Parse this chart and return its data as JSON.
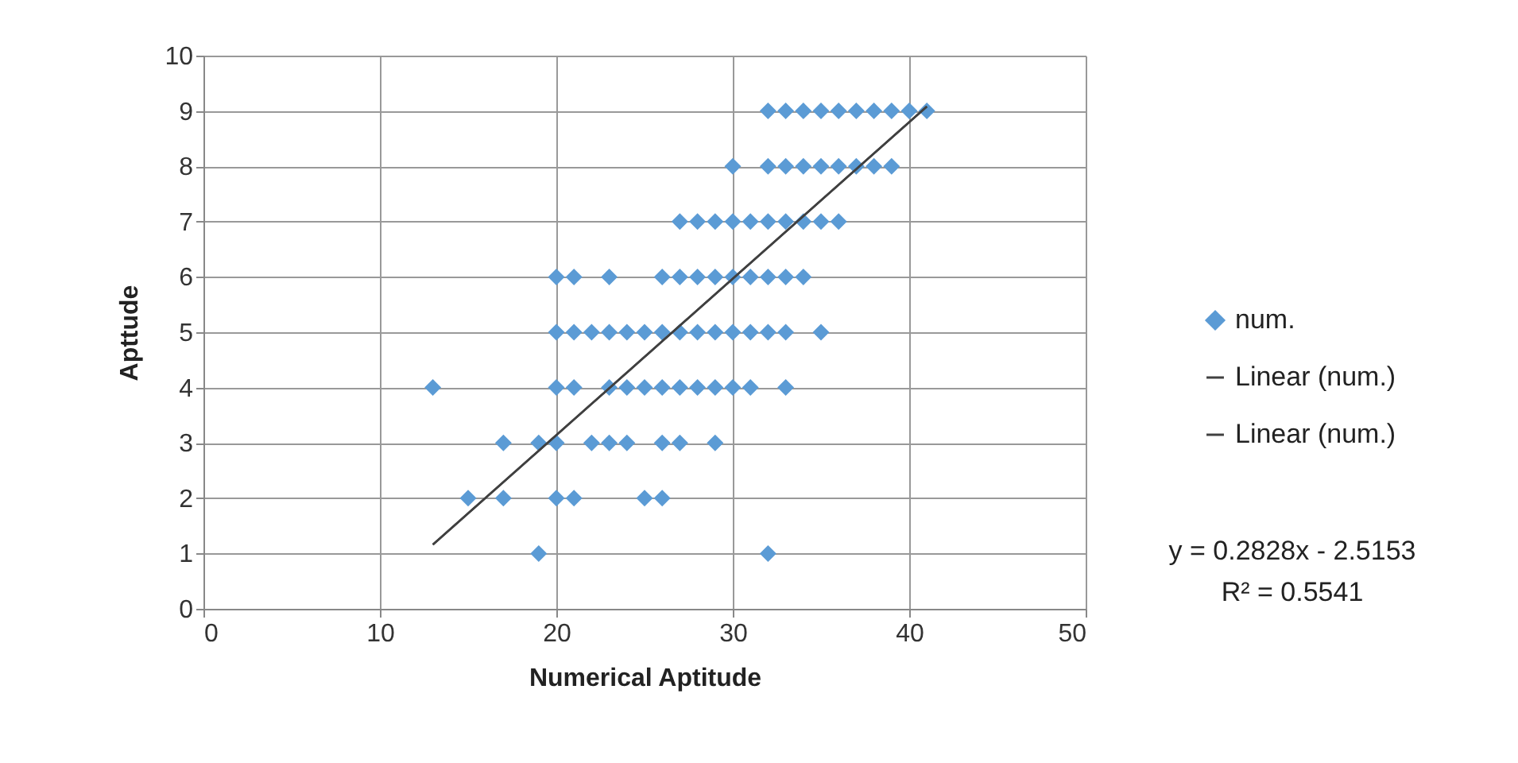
{
  "chart_data": {
    "type": "scatter",
    "xlabel": "Numerical Aptitude",
    "ylabel": "Apttude",
    "xlim": [
      0,
      50
    ],
    "ylim": [
      0,
      10
    ],
    "xticks": [
      0,
      10,
      20,
      30,
      40,
      50
    ],
    "yticks": [
      0,
      1,
      2,
      3,
      4,
      5,
      6,
      7,
      8,
      9,
      10
    ],
    "grid": true,
    "legend": "right",
    "marker": "diamond",
    "annotations": [
      "y = 0.2828x - 2.5153",
      "R² = 0.5541"
    ],
    "series": [
      {
        "name": "num.",
        "color": "#5b9bd5",
        "x": [
          32,
          33,
          34,
          35,
          36,
          37,
          38,
          39,
          40,
          41,
          30,
          32,
          33,
          34,
          35,
          36,
          37,
          38,
          39,
          27,
          28,
          29,
          30,
          31,
          32,
          33,
          34,
          35,
          36,
          20,
          21,
          23,
          26,
          27,
          28,
          29,
          30,
          31,
          32,
          33,
          34,
          20,
          21,
          22,
          23,
          24,
          25,
          26,
          27,
          28,
          29,
          30,
          31,
          32,
          33,
          35,
          13,
          20,
          21,
          23,
          24,
          25,
          26,
          27,
          28,
          29,
          30,
          31,
          33,
          17,
          19,
          20,
          22,
          23,
          24,
          26,
          27,
          29,
          15,
          17,
          20,
          21,
          25,
          26,
          19,
          32
        ],
        "values": [
          9,
          9,
          9,
          9,
          9,
          9,
          9,
          9,
          9,
          9,
          8,
          8,
          8,
          8,
          8,
          8,
          8,
          8,
          8,
          7,
          7,
          7,
          7,
          7,
          7,
          7,
          7,
          7,
          7,
          6,
          6,
          6,
          6,
          6,
          6,
          6,
          6,
          6,
          6,
          6,
          6,
          5,
          5,
          5,
          5,
          5,
          5,
          5,
          5,
          5,
          5,
          5,
          5,
          5,
          5,
          5,
          4,
          4,
          4,
          4,
          4,
          4,
          4,
          4,
          4,
          4,
          4,
          4,
          4,
          3,
          3,
          3,
          3,
          3,
          3,
          3,
          3,
          3,
          2,
          2,
          2,
          2,
          2,
          2,
          1,
          1
        ]
      },
      {
        "name": "Linear (num.)",
        "type": "line",
        "marker": "none",
        "color": "#404040",
        "x": [
          13,
          41
        ],
        "values": [
          1.16,
          9.08
        ]
      },
      {
        "name": "Linear (num.)",
        "type": "line",
        "marker": "none",
        "color": "#404040",
        "x": [
          13,
          41
        ],
        "values": [
          1.16,
          9.08
        ]
      }
    ]
  }
}
